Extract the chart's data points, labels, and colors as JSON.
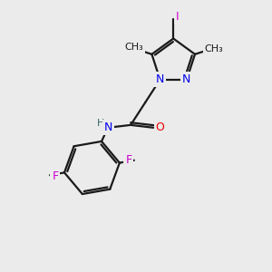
{
  "bg_color": "#ebebeb",
  "bond_color": "#1a1a1a",
  "N_color": "#0000ee",
  "O_color": "#ee0000",
  "F_color": "#cc00cc",
  "I_color": "#cc00cc",
  "H_color": "#336666",
  "figsize": [
    3.0,
    3.0
  ],
  "dpi": 100,
  "xlim": [
    0,
    10
  ],
  "ylim": [
    0,
    10
  ]
}
